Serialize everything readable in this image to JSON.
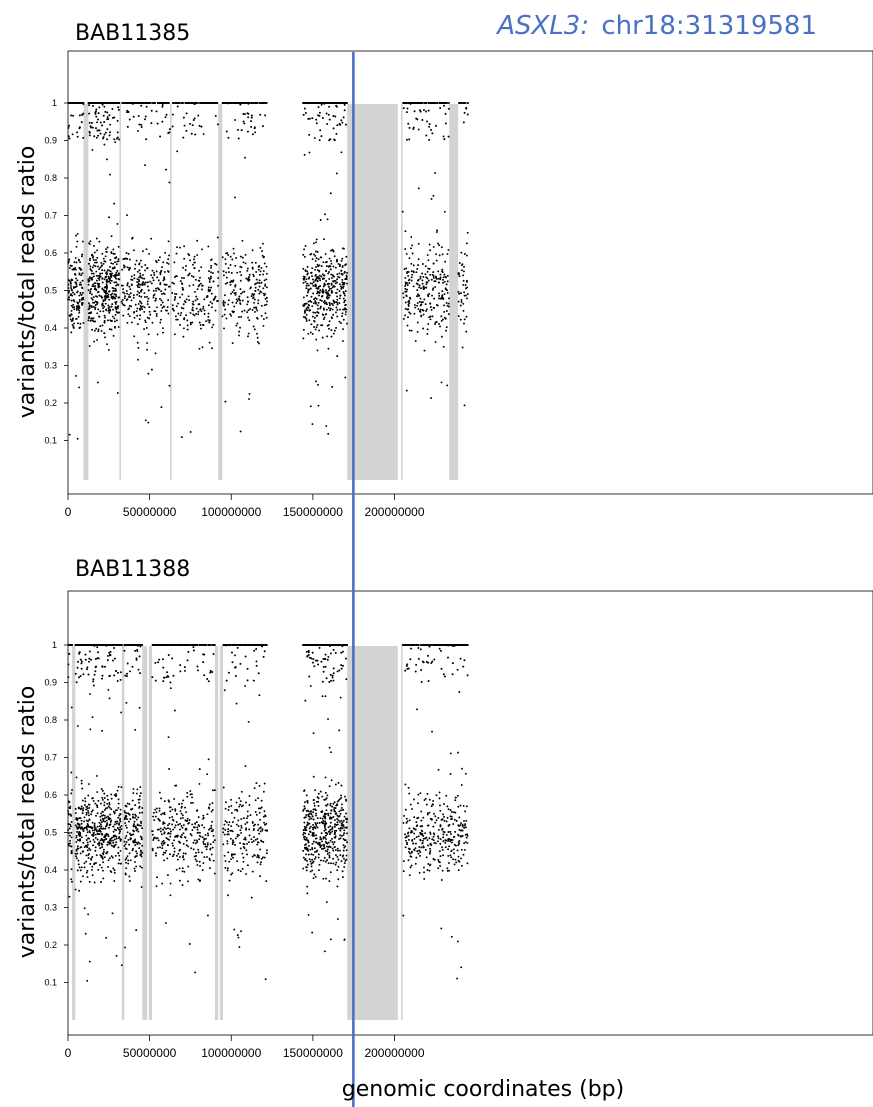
{
  "figure": {
    "annotation": {
      "gene": "ASXL3:",
      "locus": "chr18:31319581",
      "position_bp": 174800000,
      "color": "#4a72c2"
    },
    "xlabel": "genomic coordinates (bp)",
    "ylabel": "variants/total reads ratio",
    "shade_color": "#d3d3d3",
    "point_color": "#000000"
  },
  "chart_data": [
    {
      "type": "scatter",
      "title": "BAB11385",
      "xlabel": "",
      "ylabel": "variants/total reads ratio",
      "xlim": [
        0,
        245000000
      ],
      "ylim": [
        0,
        1.15
      ],
      "x_ticks": [
        {
          "value": 0,
          "label": "0"
        },
        {
          "value": 50000000,
          "label": "50000000"
        },
        {
          "value": 100000000,
          "label": "100000000"
        },
        {
          "value": 150000000,
          "label": "150000000"
        },
        {
          "value": 200000000,
          "label": "200000000"
        }
      ],
      "y_ticks": [
        {
          "value": 0.1,
          "label": "0.1"
        },
        {
          "value": 0.2,
          "label": "0.2"
        },
        {
          "value": 0.3,
          "label": "0.3"
        },
        {
          "value": 0.4,
          "label": "0.4"
        },
        {
          "value": 0.5,
          "label": "0.5"
        },
        {
          "value": 0.6,
          "label": "0.6"
        },
        {
          "value": 0.7,
          "label": "0.7"
        },
        {
          "value": 0.8,
          "label": "0.8"
        },
        {
          "value": 0.9,
          "label": "0.9"
        },
        {
          "value": 1,
          "label": "1"
        }
      ],
      "shaded_regions_bp": [
        [
          9500000,
          12500000
        ],
        [
          31500000,
          32500000
        ],
        [
          62500000,
          63500000
        ],
        [
          92000000,
          94500000
        ],
        [
          171000000,
          202000000
        ],
        [
          204000000,
          205000000
        ],
        [
          233500000,
          239000000
        ]
      ],
      "variant_clusters": [
        {
          "range": [
            0,
            9500000
          ],
          "count": 150
        },
        {
          "range": [
            12500000,
            31500000
          ],
          "count": 380
        },
        {
          "range": [
            32500000,
            62500000
          ],
          "count": 260
        },
        {
          "range": [
            63500000,
            92000000
          ],
          "count": 190
        },
        {
          "range": [
            94500000,
            122000000
          ],
          "count": 210
        },
        {
          "range": [
            144000000,
            171000000
          ],
          "count": 420
        },
        {
          "range": [
            205000000,
            233500000
          ],
          "count": 260
        },
        {
          "range": [
            239000000,
            245000000
          ],
          "count": 45
        }
      ]
    },
    {
      "type": "scatter",
      "title": "BAB11388",
      "xlabel": "genomic coordinates (bp)",
      "ylabel": "variants/total reads ratio",
      "xlim": [
        0,
        245000000
      ],
      "ylim": [
        0,
        1.15
      ],
      "x_ticks": [
        {
          "value": 0,
          "label": "0"
        },
        {
          "value": 50000000,
          "label": "50000000"
        },
        {
          "value": 100000000,
          "label": "100000000"
        },
        {
          "value": 150000000,
          "label": "150000000"
        },
        {
          "value": 200000000,
          "label": "200000000"
        }
      ],
      "y_ticks": [
        {
          "value": 0.1,
          "label": "0.1"
        },
        {
          "value": 0.2,
          "label": "0.2"
        },
        {
          "value": 0.3,
          "label": "0.3"
        },
        {
          "value": 0.4,
          "label": "0.4"
        },
        {
          "value": 0.5,
          "label": "0.5"
        },
        {
          "value": 0.6,
          "label": "0.6"
        },
        {
          "value": 0.7,
          "label": "0.7"
        },
        {
          "value": 0.8,
          "label": "0.8"
        },
        {
          "value": 0.9,
          "label": "0.9"
        },
        {
          "value": 1,
          "label": "1"
        }
      ],
      "shaded_regions_bp": [
        [
          2500000,
          4500000
        ],
        [
          33000000,
          34500000
        ],
        [
          45500000,
          48500000
        ],
        [
          49500000,
          51500000
        ],
        [
          90000000,
          92000000
        ],
        [
          93000000,
          95000000
        ],
        [
          171000000,
          202000000
        ],
        [
          204000000,
          205000000
        ]
      ],
      "variant_clusters": [
        {
          "range": [
            0,
            2500000
          ],
          "count": 40
        },
        {
          "range": [
            4500000,
            33000000
          ],
          "count": 460
        },
        {
          "range": [
            34500000,
            45500000
          ],
          "count": 150
        },
        {
          "range": [
            51500000,
            90000000
          ],
          "count": 300
        },
        {
          "range": [
            95000000,
            122000000
          ],
          "count": 200
        },
        {
          "range": [
            144000000,
            171000000
          ],
          "count": 440
        },
        {
          "range": [
            205000000,
            245000000
          ],
          "count": 330
        }
      ]
    }
  ]
}
